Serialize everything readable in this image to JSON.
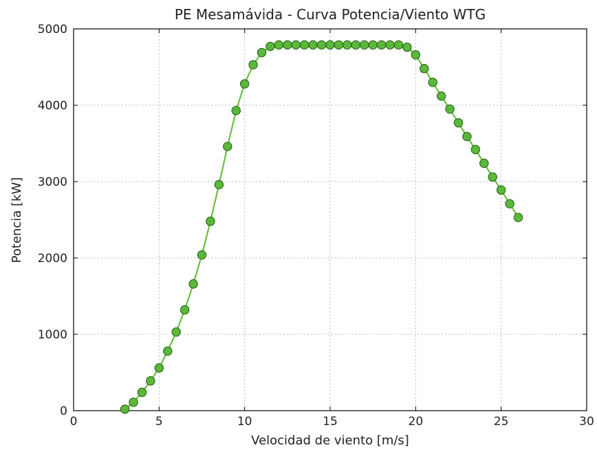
{
  "chart_data": {
    "type": "line",
    "title": "PE Mesamávida - Curva Potencia/Viento WTG",
    "xlabel": "Velocidad de viento [m/s]",
    "ylabel": "Potencia [kW]",
    "xlim": [
      0,
      30
    ],
    "ylim": [
      0,
      5000
    ],
    "xticks": [
      0,
      5,
      10,
      15,
      20,
      25,
      30
    ],
    "yticks": [
      0,
      1000,
      2000,
      3000,
      4000,
      5000
    ],
    "xtick_labels": [
      "0",
      "5",
      "10",
      "15",
      "20",
      "25",
      "30"
    ],
    "ytick_labels": [
      "0",
      "1000",
      "2000",
      "3000",
      "4000",
      "5000"
    ],
    "grid": true,
    "colors": {
      "line": "#6abf40",
      "marker_fill": "#5cb83a",
      "marker_edge": "#1f5a12",
      "grid": "#b8b8b8",
      "axis": "#000000"
    },
    "series": [
      {
        "x": [
          3,
          3.5,
          4,
          4.5,
          5,
          5.5,
          6,
          6.5,
          7,
          7.5,
          8,
          8.5,
          9,
          9.5,
          10,
          10.5,
          11,
          11.5,
          12,
          12.5,
          13,
          13.5,
          14,
          14.5,
          15,
          15.5,
          16,
          16.5,
          17,
          17.5,
          18,
          18.5,
          19,
          19.5,
          20,
          20.5,
          21,
          21.5,
          22,
          22.5,
          23,
          23.5,
          24,
          24.5,
          25,
          25.5,
          26
        ],
        "y": [
          20,
          110,
          240,
          390,
          560,
          780,
          1030,
          1320,
          1660,
          2040,
          2480,
          2960,
          3460,
          3930,
          4280,
          4530,
          4690,
          4770,
          4790,
          4790,
          4790,
          4790,
          4790,
          4790,
          4790,
          4790,
          4790,
          4790,
          4790,
          4790,
          4790,
          4790,
          4790,
          4760,
          4660,
          4480,
          4300,
          4120,
          3950,
          3770,
          3590,
          3420,
          3240,
          3060,
          2890,
          2710,
          2530
        ]
      }
    ]
  }
}
